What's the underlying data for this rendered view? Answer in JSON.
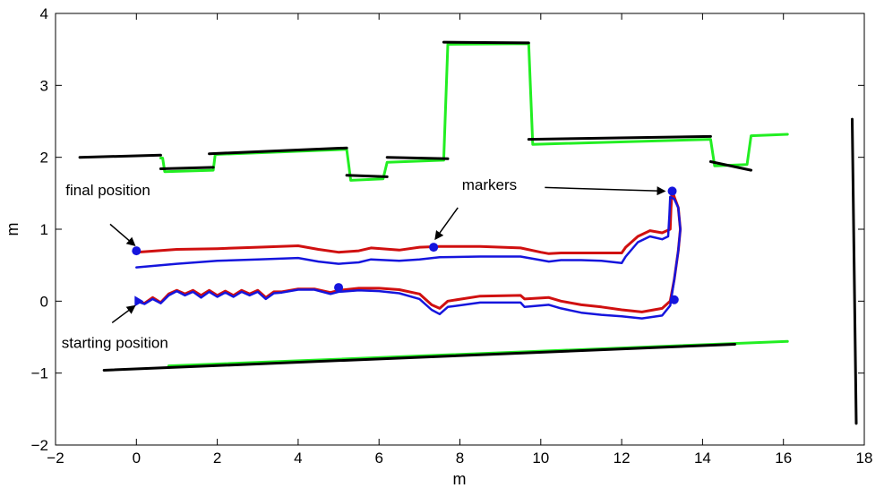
{
  "chart_data": {
    "type": "line",
    "title": "",
    "xlabel": "m",
    "ylabel": "m",
    "xlim": [
      -2,
      18
    ],
    "ylim": [
      -2,
      4
    ],
    "xticks": [
      -2,
      0,
      2,
      4,
      6,
      8,
      10,
      12,
      14,
      16,
      18
    ],
    "yticks": [
      -2,
      -1,
      0,
      1,
      2,
      3,
      4
    ],
    "xtick_labels": [
      "−2",
      "0",
      "2",
      "4",
      "6",
      "8",
      "10",
      "12",
      "14",
      "16",
      "18"
    ],
    "ytick_labels": [
      "−2",
      "−1",
      "0",
      "1",
      "2",
      "3",
      "4"
    ],
    "grid": false,
    "colors": {
      "map_black": "#000000",
      "map_green": "#22ee22",
      "trajectory_red": "#d01010",
      "trajectory_blue": "#1515dd",
      "marker": "#1515dd"
    },
    "series": [
      {
        "key": "map_green",
        "style": "green",
        "segments": [
          [
            [
              0.6,
              1.99
            ],
            [
              0.65,
              1.99
            ],
            [
              0.7,
              1.8
            ],
            [
              1.9,
              1.82
            ],
            [
              1.95,
              2.04
            ],
            [
              5.2,
              2.11
            ],
            [
              5.3,
              1.68
            ],
            [
              6.1,
              1.7
            ],
            [
              6.2,
              1.93
            ],
            [
              7.6,
              1.96
            ],
            [
              7.7,
              3.57
            ],
            [
              9.7,
              3.58
            ],
            [
              9.8,
              2.18
            ],
            [
              14.2,
              2.25
            ],
            [
              14.3,
              1.88
            ],
            [
              15.1,
              1.9
            ],
            [
              15.2,
              2.3
            ],
            [
              16.1,
              2.32
            ]
          ],
          [
            [
              0.8,
              -0.9
            ],
            [
              16.1,
              -0.56
            ]
          ]
        ]
      },
      {
        "key": "map_black",
        "style": "black",
        "segments": [
          [
            [
              -1.4,
              2.0
            ],
            [
              0.6,
              2.03
            ]
          ],
          [
            [
              0.6,
              1.84
            ],
            [
              1.9,
              1.86
            ]
          ],
          [
            [
              1.8,
              2.05
            ],
            [
              5.2,
              2.13
            ]
          ],
          [
            [
              5.2,
              1.75
            ],
            [
              6.2,
              1.73
            ]
          ],
          [
            [
              6.2,
              2.0
            ],
            [
              7.7,
              1.98
            ]
          ],
          [
            [
              7.6,
              3.6
            ],
            [
              9.7,
              3.59
            ]
          ],
          [
            [
              9.7,
              2.25
            ],
            [
              14.2,
              2.29
            ]
          ],
          [
            [
              14.2,
              1.94
            ],
            [
              15.2,
              1.82
            ]
          ],
          [
            [
              -0.8,
              -0.96
            ],
            [
              14.8,
              -0.6
            ]
          ],
          [
            [
              17.7,
              2.53
            ],
            [
              17.8,
              -1.7
            ]
          ]
        ]
      },
      {
        "key": "trajectory_red",
        "style": "red",
        "segments": [
          [
            [
              0.0,
              0.0
            ],
            [
              0.2,
              -0.03
            ],
            [
              0.4,
              0.05
            ],
            [
              0.6,
              -0.02
            ],
            [
              0.8,
              0.1
            ],
            [
              1.0,
              0.15
            ],
            [
              1.2,
              0.1
            ],
            [
              1.4,
              0.15
            ],
            [
              1.6,
              0.08
            ],
            [
              1.8,
              0.15
            ],
            [
              2.0,
              0.08
            ],
            [
              2.2,
              0.14
            ],
            [
              2.4,
              0.08
            ],
            [
              2.6,
              0.15
            ],
            [
              2.8,
              0.1
            ],
            [
              3.0,
              0.15
            ],
            [
              3.2,
              0.05
            ],
            [
              3.4,
              0.13
            ],
            [
              3.6,
              0.13
            ],
            [
              4.0,
              0.17
            ],
            [
              4.4,
              0.17
            ],
            [
              4.8,
              0.12
            ],
            [
              5.0,
              0.15
            ],
            [
              5.5,
              0.18
            ],
            [
              6.0,
              0.18
            ],
            [
              6.5,
              0.16
            ],
            [
              7.0,
              0.1
            ],
            [
              7.3,
              -0.05
            ],
            [
              7.5,
              -0.1
            ],
            [
              7.7,
              0.0
            ],
            [
              8.5,
              0.07
            ],
            [
              9.5,
              0.08
            ],
            [
              9.6,
              0.03
            ],
            [
              10.2,
              0.05
            ],
            [
              10.5,
              0.0
            ],
            [
              11.0,
              -0.05
            ],
            [
              11.5,
              -0.08
            ],
            [
              12.0,
              -0.12
            ],
            [
              12.5,
              -0.15
            ],
            [
              13.0,
              -0.1
            ],
            [
              13.2,
              0.0
            ],
            [
              13.3,
              0.3
            ],
            [
              13.4,
              0.7
            ],
            [
              13.45,
              1.0
            ],
            [
              13.4,
              1.3
            ],
            [
              13.3,
              1.45
            ],
            [
              13.25,
              1.55
            ],
            [
              13.22,
              1.3
            ],
            [
              13.2,
              1.0
            ],
            [
              13.0,
              0.95
            ],
            [
              12.7,
              0.98
            ],
            [
              12.4,
              0.9
            ],
            [
              12.1,
              0.75
            ],
            [
              12.0,
              0.67
            ],
            [
              11.5,
              0.67
            ],
            [
              11.0,
              0.67
            ],
            [
              10.5,
              0.67
            ],
            [
              10.2,
              0.66
            ],
            [
              10.0,
              0.68
            ],
            [
              9.5,
              0.74
            ],
            [
              8.5,
              0.76
            ],
            [
              7.5,
              0.76
            ],
            [
              7.0,
              0.75
            ],
            [
              6.5,
              0.71
            ],
            [
              5.8,
              0.74
            ],
            [
              5.5,
              0.7
            ],
            [
              5.0,
              0.68
            ],
            [
              4.5,
              0.72
            ],
            [
              4.0,
              0.77
            ],
            [
              3.0,
              0.75
            ],
            [
              2.0,
              0.73
            ],
            [
              1.0,
              0.72
            ],
            [
              0.0,
              0.68
            ]
          ]
        ]
      },
      {
        "key": "trajectory_blue",
        "style": "blue",
        "segments": [
          [
            [
              0.0,
              0.0
            ],
            [
              0.2,
              -0.04
            ],
            [
              0.4,
              0.03
            ],
            [
              0.6,
              -0.03
            ],
            [
              0.8,
              0.08
            ],
            [
              1.0,
              0.14
            ],
            [
              1.2,
              0.08
            ],
            [
              1.4,
              0.13
            ],
            [
              1.6,
              0.05
            ],
            [
              1.8,
              0.13
            ],
            [
              2.0,
              0.06
            ],
            [
              2.2,
              0.12
            ],
            [
              2.4,
              0.06
            ],
            [
              2.6,
              0.13
            ],
            [
              2.8,
              0.08
            ],
            [
              3.0,
              0.13
            ],
            [
              3.2,
              0.03
            ],
            [
              3.4,
              0.11
            ],
            [
              3.6,
              0.12
            ],
            [
              4.0,
              0.16
            ],
            [
              4.4,
              0.16
            ],
            [
              4.8,
              0.1
            ],
            [
              5.0,
              0.13
            ],
            [
              5.5,
              0.15
            ],
            [
              6.0,
              0.14
            ],
            [
              6.5,
              0.11
            ],
            [
              7.0,
              0.03
            ],
            [
              7.3,
              -0.12
            ],
            [
              7.5,
              -0.18
            ],
            [
              7.7,
              -0.08
            ],
            [
              8.5,
              -0.02
            ],
            [
              9.5,
              -0.02
            ],
            [
              9.6,
              -0.08
            ],
            [
              10.2,
              -0.05
            ],
            [
              10.5,
              -0.1
            ],
            [
              11.0,
              -0.16
            ],
            [
              11.5,
              -0.19
            ],
            [
              12.0,
              -0.21
            ],
            [
              12.5,
              -0.24
            ],
            [
              13.0,
              -0.2
            ],
            [
              13.2,
              -0.06
            ],
            [
              13.3,
              0.3
            ],
            [
              13.4,
              0.7
            ],
            [
              13.45,
              1.0
            ],
            [
              13.4,
              1.3
            ],
            [
              13.3,
              1.42
            ],
            [
              13.2,
              1.45
            ],
            [
              13.18,
              1.2
            ],
            [
              13.15,
              0.9
            ],
            [
              13.0,
              0.86
            ],
            [
              12.7,
              0.9
            ],
            [
              12.4,
              0.82
            ],
            [
              12.1,
              0.62
            ],
            [
              12.0,
              0.53
            ],
            [
              11.5,
              0.56
            ],
            [
              11.0,
              0.57
            ],
            [
              10.5,
              0.57
            ],
            [
              10.2,
              0.55
            ],
            [
              10.0,
              0.57
            ],
            [
              9.5,
              0.62
            ],
            [
              8.5,
              0.62
            ],
            [
              7.5,
              0.61
            ],
            [
              7.0,
              0.58
            ],
            [
              6.5,
              0.56
            ],
            [
              5.8,
              0.58
            ],
            [
              5.5,
              0.54
            ],
            [
              5.0,
              0.52
            ],
            [
              4.5,
              0.55
            ],
            [
              4.0,
              0.6
            ],
            [
              3.0,
              0.58
            ],
            [
              2.0,
              0.56
            ],
            [
              1.0,
              0.52
            ],
            [
              0.0,
              0.47
            ]
          ]
        ]
      }
    ],
    "markers": [
      {
        "x": 0.0,
        "y": 0.7
      },
      {
        "x": 7.35,
        "y": 0.75
      },
      {
        "x": 5.0,
        "y": 0.19
      },
      {
        "x": 13.25,
        "y": 1.53
      },
      {
        "x": 13.3,
        "y": 0.02
      }
    ],
    "start_marker": {
      "x": 0.0,
      "y": 0.0,
      "shape": "triangle"
    },
    "annotations": [
      {
        "key": "final",
        "text": "final position",
        "text_at": [
          -1.75,
          1.47
        ],
        "arrow_from": [
          -0.65,
          1.07
        ],
        "arrow_to": [
          -0.05,
          0.78
        ]
      },
      {
        "key": "start",
        "text": "starting position",
        "text_at": [
          -1.85,
          -0.65
        ],
        "arrow_from": [
          -0.6,
          -0.3
        ],
        "arrow_to": [
          -0.05,
          -0.07
        ]
      },
      {
        "key": "markers",
        "text": "markers",
        "text_at": [
          8.05,
          1.55
        ],
        "arrow_from": [
          7.95,
          1.3
        ],
        "arrow_to": [
          7.4,
          0.87
        ],
        "arrow2_from": [
          10.1,
          1.58
        ],
        "arrow2_to": [
          13.05,
          1.53
        ]
      }
    ]
  }
}
